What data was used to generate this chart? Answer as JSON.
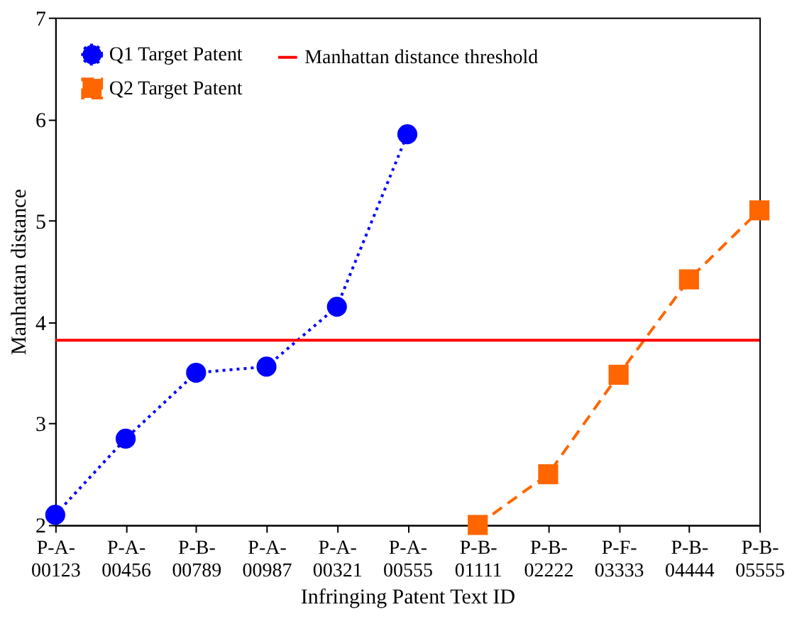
{
  "chart_data": {
    "type": "line",
    "xlabel": "Infringing Patent Text ID",
    "ylabel": "Manhattan distance",
    "categories": [
      "P-A-\n00123",
      "P-A-\n00456",
      "P-B-\n00789",
      "P-A-\n00987",
      "P-A-\n00321",
      "P-A-\n00555",
      "P-B-\n01111",
      "P-B-\n02222",
      "P-F-\n03333",
      "P-B-\n04444",
      "P-B-\n05555"
    ],
    "series": [
      {
        "name": "Q1 Target Patent",
        "color": "#0000ff",
        "marker": "circle",
        "line_style": "dotted",
        "values": [
          2.1,
          2.85,
          3.5,
          3.56,
          4.15,
          5.85,
          null,
          null,
          null,
          null,
          null
        ]
      },
      {
        "name": "Q2 Target Patent",
        "color": "#ff6600",
        "marker": "square",
        "line_style": "dashed",
        "values": [
          null,
          null,
          null,
          null,
          null,
          null,
          2.0,
          2.5,
          3.48,
          4.42,
          5.1
        ]
      }
    ],
    "ref_lines": [
      {
        "axis": "y",
        "value": 3.82,
        "label": "Manhattan distance threshold",
        "color": "#ff0000"
      }
    ],
    "ylim": [
      2,
      7
    ],
    "yticks": [
      2,
      3,
      4,
      5,
      6,
      7
    ],
    "grid": false,
    "legend": "top left"
  }
}
